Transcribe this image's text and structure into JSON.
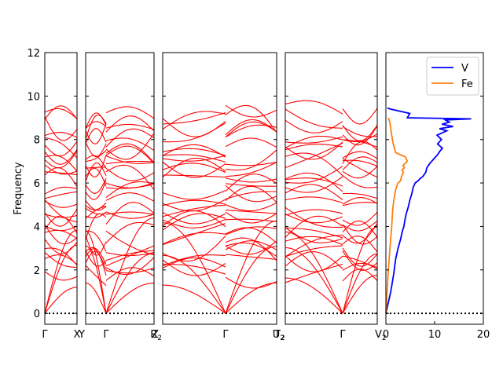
{
  "chart_data": {
    "type": "line",
    "ylabel": "Frequency",
    "ylim": [
      -0.5,
      12
    ],
    "yticks": [
      0,
      2,
      4,
      6,
      8,
      10,
      12
    ],
    "zero_line": {
      "y": 0,
      "style": "dotted",
      "color": "#000000"
    },
    "band_color": "#ff0000",
    "panels": [
      {
        "kind": "bands",
        "xticks": [
          "Γ",
          "X"
        ]
      },
      {
        "kind": "bands",
        "xticks": [
          "Y",
          "Γ",
          "Z"
        ]
      },
      {
        "kind": "bands",
        "xticks": [
          "R2",
          "Γ",
          "T2"
        ]
      },
      {
        "kind": "bands",
        "xticks": [
          "U2",
          "Γ",
          "V2"
        ]
      },
      {
        "kind": "dos",
        "xlim": [
          0,
          20
        ],
        "xticks": [
          "0",
          "10",
          "20"
        ],
        "legend": "top-right",
        "series": [
          {
            "name": "V",
            "color": "#0000ff",
            "x": [
              0,
              1,
              1.6,
              2,
              2.5,
              3,
              3.4,
              3.7,
              3.9,
              4.2,
              4.6,
              4.9,
              5.3,
              5.6,
              6.0,
              6.6,
              7.0,
              7.6,
              8.2,
              8.4,
              9.0,
              9.8,
              10.6,
              11.2,
              11.6,
              10.6,
              11.4,
              10.5,
              12.5,
              11.0,
              13.8,
              11.5,
              13.0,
              12.2,
              17.5,
              4.4,
              4.9,
              1.0,
              0.3
            ],
            "y": [
              0,
              1.0,
              1.8,
              2.5,
              3.0,
              3.4,
              3.8,
              4.0,
              4.3,
              4.6,
              4.9,
              5.2,
              5.5,
              5.8,
              6.0,
              6.1,
              6.2,
              6.3,
              6.5,
              6.7,
              6.9,
              7.1,
              7.3,
              7.5,
              7.6,
              7.8,
              8.0,
              8.2,
              8.4,
              8.5,
              8.6,
              8.7,
              8.8,
              8.9,
              8.95,
              9.0,
              9.2,
              9.4,
              9.45
            ]
          },
          {
            "name": "Fe",
            "color": "#ff7f0e",
            "x": [
              0,
              0.5,
              0.9,
              1.2,
              1.4,
              1.7,
              2.0,
              2.5,
              3.0,
              3.2,
              3.6,
              3.3,
              3.8,
              3.5,
              4.4,
              4.0,
              3.0,
              2.0,
              1.5,
              1.2,
              1.0,
              0.8,
              0.5
            ],
            "y": [
              0,
              2.0,
              3.2,
              4.0,
              4.8,
              5.3,
              5.7,
              6.0,
              6.1,
              6.3,
              6.5,
              6.6,
              6.7,
              6.8,
              7.0,
              7.2,
              7.3,
              7.4,
              7.8,
              8.2,
              8.5,
              8.8,
              9.0
            ]
          }
        ]
      }
    ]
  }
}
